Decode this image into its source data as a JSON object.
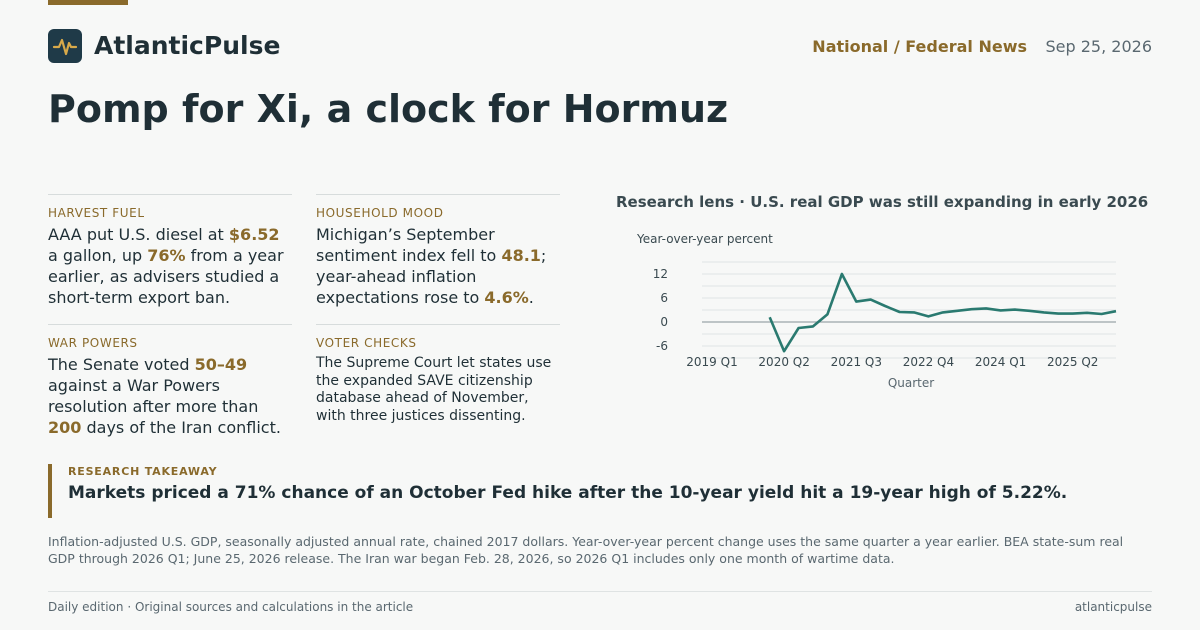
{
  "brand": {
    "name": "AtlanticPulse",
    "icon": "pulse-icon",
    "accent": "#8a6a2b",
    "dark": "#1f3a48"
  },
  "header": {
    "section": "National / Federal News",
    "date": "Sep 25, 2026"
  },
  "headline": "Pomp for Xi, a clock for Hormuz",
  "cards": {
    "harvest": {
      "label": "HARVEST FUEL",
      "t1": "AAA put U.S. diesel at ",
      "v1": "$6.52",
      "t2": " a gallon, up ",
      "v2": "76%",
      "t3": " from a year earlier, as advisers studied a short-term export ban."
    },
    "mood": {
      "label": "HOUSEHOLD MOOD",
      "t1": "Michigan’s September sentiment index fell to ",
      "v1": "48.1",
      "t2": "; year-ahead inflation expectations rose to ",
      "v2": "4.6%",
      "t3": "."
    },
    "war": {
      "label": "WAR POWERS",
      "t1": "The Senate voted ",
      "v1": "50–49",
      "t2": " against a War Powers resolution after more than ",
      "v2": "200",
      "t3": " days of the Iran conflict."
    },
    "voter": {
      "label": "VOTER CHECKS",
      "text": "The Supreme Court let states use the expanded SAVE citizenship database ahead of November, with three justices dissenting."
    }
  },
  "chart": {
    "title": "Research lens · U.S. real GDP was still expanding in early 2026",
    "ylabel_top": "Year-over-year percent",
    "xlabel": "Quarter",
    "line_color": "#2a7a70"
  },
  "chart_data": {
    "type": "line",
    "title": "Research lens · U.S. real GDP was still expanding in early 2026",
    "ylabel": "Year-over-year percent",
    "xlabel": "Quarter",
    "ylim": [
      -9,
      15
    ],
    "yticks": [
      12,
      6,
      0,
      -6
    ],
    "xticks": [
      "2019 Q1",
      "2020 Q2",
      "2021 Q3",
      "2022 Q4",
      "2024 Q1",
      "2025 Q2"
    ],
    "grid": true,
    "series": [
      {
        "x": [
          "2019 Q1",
          "2019 Q2",
          "2019 Q3",
          "2019 Q4",
          "2020 Q1",
          "2020 Q2",
          "2020 Q3",
          "2020 Q4",
          "2021 Q1",
          "2021 Q2",
          "2021 Q3",
          "2021 Q4",
          "2022 Q1",
          "2022 Q2",
          "2022 Q3",
          "2022 Q4",
          "2023 Q1",
          "2023 Q2",
          "2023 Q3",
          "2023 Q4",
          "2024 Q1",
          "2024 Q2",
          "2024 Q3",
          "2024 Q4",
          "2025 Q1",
          "2025 Q2",
          "2025 Q3",
          "2025 Q4",
          "2026 Q1"
        ],
        "values": [
          null,
          null,
          null,
          null,
          1.2,
          -7.3,
          -1.5,
          -1.1,
          1.9,
          12.0,
          5.1,
          5.6,
          4.0,
          2.5,
          2.4,
          1.4,
          2.4,
          2.8,
          3.2,
          3.4,
          2.9,
          3.1,
          2.8,
          2.4,
          2.1,
          2.1,
          2.3,
          2.0,
          2.7
        ]
      }
    ]
  },
  "takeaway": {
    "label": "RESEARCH TAKEAWAY",
    "text": "Markets priced a 71% chance of an October Fed hike after the 10-year yield hit a 19-year high of 5.22%."
  },
  "note": "Inflation-adjusted U.S. GDP, seasonally adjusted annual rate, chained 2017 dollars. Year-over-year percent change uses the same quarter a year earlier. BEA state-sum real GDP through 2026 Q1; June 25, 2026 release. The Iran war began Feb. 28, 2026, so 2026 Q1 includes only one month of wartime data.",
  "footer": {
    "left": "Daily edition · Original sources and calculations in the article",
    "right": "atlanticpulse"
  }
}
